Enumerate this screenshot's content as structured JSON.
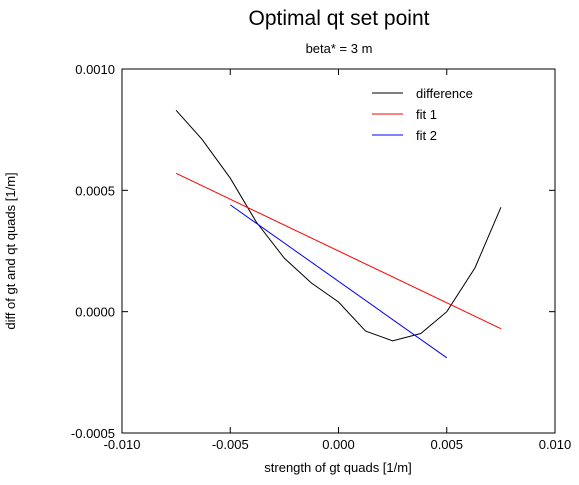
{
  "chart_data": {
    "type": "line",
    "title": "Optimal qt set point",
    "subtitle": "beta* = 3 m",
    "xlabel": "strength of gt quads [1/m]",
    "ylabel": "diff of gt and qt quads [1/m]",
    "xlim": [
      -0.01,
      0.01
    ],
    "ylim": [
      -0.0005,
      0.001
    ],
    "x_ticks": [
      {
        "value": -0.01,
        "label": "-0.010"
      },
      {
        "value": -0.005,
        "label": "-0.005"
      },
      {
        "value": 0.0,
        "label": "0.000"
      },
      {
        "value": 0.005,
        "label": "0.005"
      },
      {
        "value": 0.01,
        "label": "0.010"
      }
    ],
    "y_ticks": [
      {
        "value": -0.0005,
        "label": "-0.0005"
      },
      {
        "value": 0.0,
        "label": "0.0000"
      },
      {
        "value": 0.0005,
        "label": "0.0005"
      },
      {
        "value": 0.001,
        "label": "0.0010"
      }
    ],
    "grid": false,
    "legend_position": "top-right",
    "series": [
      {
        "name": "difference",
        "color": "#000000",
        "points": [
          [
            -0.0075,
            0.00083
          ],
          [
            -0.0063,
            0.00071
          ],
          [
            -0.005,
            0.00055
          ],
          [
            -0.0038,
            0.00037
          ],
          [
            -0.0025,
            0.00022
          ],
          [
            -0.00125,
            0.000118
          ],
          [
            0.0,
            4e-05
          ],
          [
            0.00125,
            -8e-05
          ],
          [
            0.0025,
            -0.00012
          ],
          [
            0.0038,
            -9e-05
          ],
          [
            0.005,
            0.0
          ],
          [
            0.0063,
            0.00018
          ],
          [
            0.0075,
            0.00043
          ]
        ]
      },
      {
        "name": "fit 1",
        "color": "#ff0000",
        "points": [
          [
            -0.0075,
            0.00057
          ],
          [
            0.0075,
            -7e-05
          ]
        ]
      },
      {
        "name": "fit 2",
        "color": "#0000ff",
        "points": [
          [
            -0.005,
            0.00044
          ],
          [
            0.005,
            -0.00019
          ]
        ]
      }
    ]
  }
}
